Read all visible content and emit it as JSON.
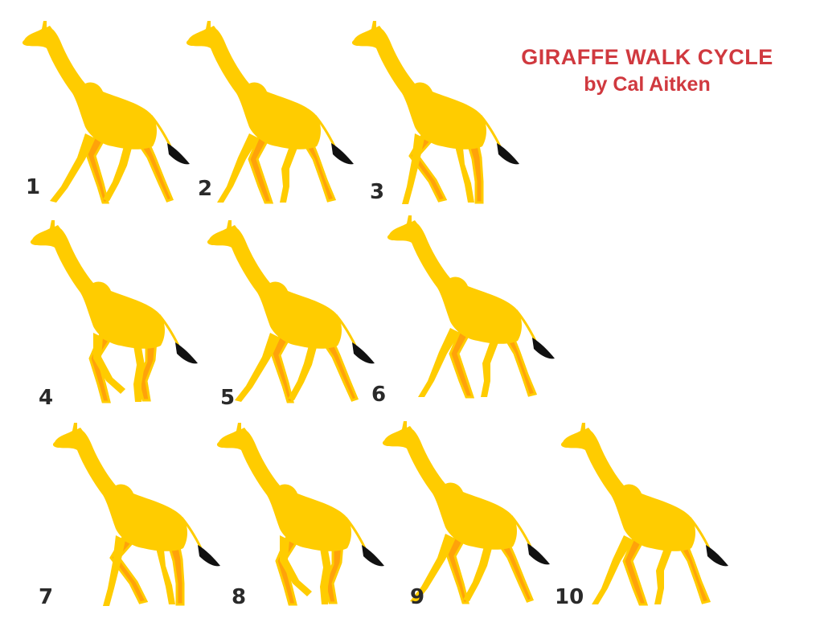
{
  "title": {
    "line1": "GIRAFFE WALK CYCLE",
    "line2": "by Cal Aitken"
  },
  "colors": {
    "body": "#ffcc00",
    "far_legs": "#ffa20a",
    "tail_tuft": "#111111",
    "title": "#d0393f",
    "numbers": "#2a2a2a"
  },
  "frames": [
    {
      "number": "1",
      "pose": "contact"
    },
    {
      "number": "2",
      "pose": "down"
    },
    {
      "number": "3",
      "pose": "passing"
    },
    {
      "number": "4",
      "pose": "up"
    },
    {
      "number": "5",
      "pose": "contact"
    },
    {
      "number": "6",
      "pose": "down"
    },
    {
      "number": "7",
      "pose": "passing"
    },
    {
      "number": "8",
      "pose": "up"
    },
    {
      "number": "9",
      "pose": "contact"
    },
    {
      "number": "10",
      "pose": "down"
    }
  ]
}
